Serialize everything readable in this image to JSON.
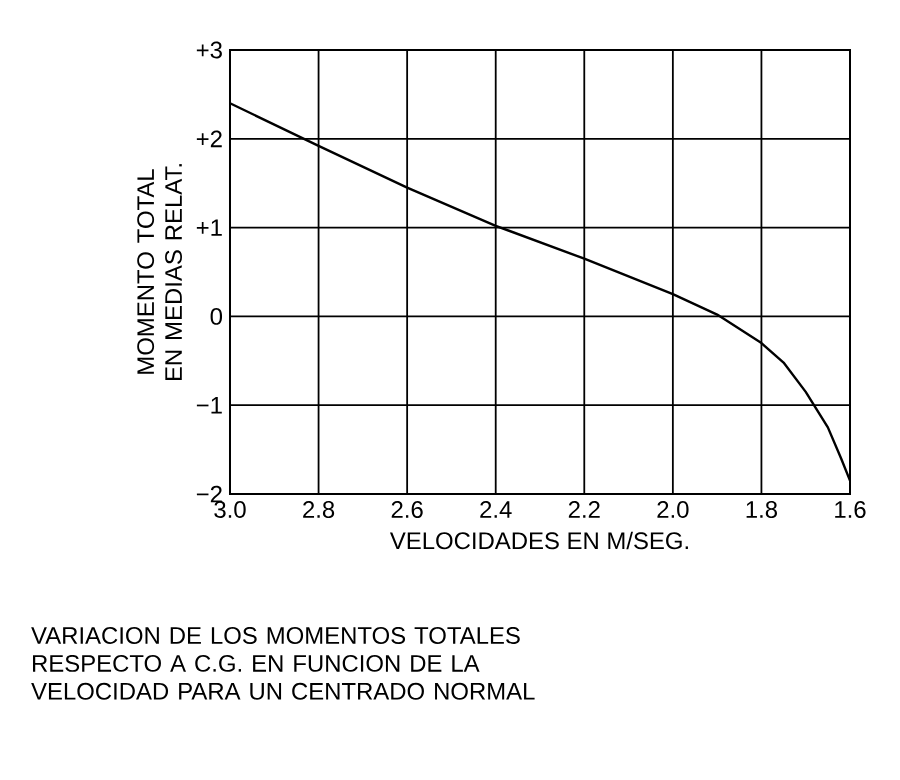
{
  "chart_data": {
    "type": "line",
    "xlabel": "VELOCIDADES EN M/SEG.",
    "ylabel": "MOMENTO TOTAL EN MEDIAS RELAT.",
    "annotations": [
      "VARIACION DE LOS MOMENTOS TOTALES RESPECTO A C.G. EN FUNCION DE LA VELOCIDAD PARA UN CENTRADO NORMAL"
    ],
    "x": [
      3.0,
      2.8,
      2.6,
      2.4,
      2.2,
      2.0,
      1.9,
      1.8,
      1.75,
      1.7,
      1.65,
      1.62,
      1.6
    ],
    "series": [
      {
        "color": "#000000",
        "values": [
          2.4,
          1.92,
          1.45,
          1.02,
          0.65,
          0.25,
          0.02,
          -0.3,
          -0.52,
          -0.85,
          -1.25,
          -1.6,
          -1.85
        ]
      }
    ],
    "xlim": [
      3.0,
      1.6
    ],
    "xticks": [
      {
        "value": 3.0,
        "label": "3.0"
      },
      2.8,
      2.6,
      2.4,
      2.2,
      {
        "value": 2.0,
        "label": "2.0"
      },
      1.8,
      1.6
    ],
    "ylim": [
      -2,
      3
    ],
    "yticks": [
      {
        "value": -2,
        "label": "−2"
      },
      {
        "value": -1,
        "label": "−1"
      },
      0,
      {
        "value": 1,
        "label": "+1"
      },
      {
        "value": 2,
        "label": "+2"
      },
      {
        "value": 3,
        "label": "+3"
      }
    ],
    "grid": true,
    "marker": "none",
    "line_style": "solid"
  }
}
